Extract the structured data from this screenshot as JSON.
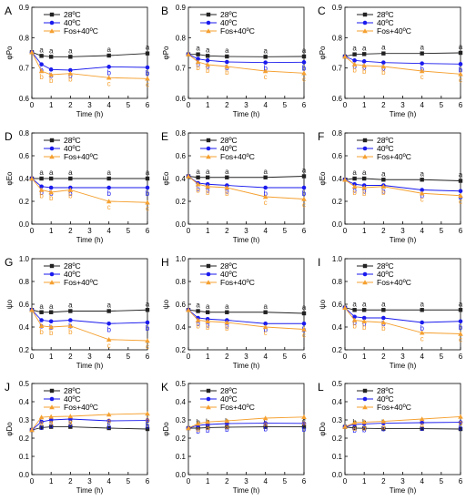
{
  "legend": {
    "labels": [
      "28ºC",
      "40ºC",
      "Fos+40ºC"
    ]
  },
  "colors": {
    "s28": "#222222",
    "s40": "#1a1aee",
    "sfos": "#f5a030",
    "axis": "#000000"
  },
  "chart_data": [
    {
      "panel": "A",
      "type": "line",
      "xlabel": "Time (h)",
      "ylabel": "φPo",
      "x": [
        0,
        0.5,
        1,
        2,
        4,
        6
      ],
      "xlim": [
        0,
        6
      ],
      "xticks": [
        "0",
        "1",
        "2",
        "3",
        "4",
        "5",
        "6"
      ],
      "ylim": [
        0.6,
        0.9
      ],
      "yticks": [
        "0.6",
        "0.7",
        "0.8",
        "0.9"
      ],
      "series": [
        {
          "name": "28ºC",
          "values": [
            0.752,
            0.74,
            0.737,
            0.737,
            0.741,
            0.748
          ],
          "labels": [
            "",
            "a",
            "a",
            "a",
            "a",
            "a"
          ]
        },
        {
          "name": "40ºC",
          "values": [
            0.752,
            0.712,
            0.695,
            0.693,
            0.704,
            0.702
          ],
          "labels": [
            "",
            "b",
            "b",
            "b",
            "b",
            "b"
          ]
        },
        {
          "name": "Fos+40ºC",
          "values": [
            0.752,
            0.69,
            0.678,
            0.682,
            0.668,
            0.665
          ],
          "labels": [
            "",
            "b",
            "b",
            "b",
            "c",
            "c"
          ]
        }
      ]
    },
    {
      "panel": "B",
      "type": "line",
      "xlabel": "Time (h)",
      "ylabel": "φPo",
      "x": [
        0,
        0.5,
        1,
        2,
        4,
        6
      ],
      "xlim": [
        0,
        6
      ],
      "xticks": [
        "0",
        "1",
        "2",
        "3",
        "4",
        "5",
        "6"
      ],
      "ylim": [
        0.6,
        0.9
      ],
      "yticks": [
        "0.6",
        "0.7",
        "0.8",
        "0.9"
      ],
      "series": [
        {
          "name": "28ºC",
          "values": [
            0.745,
            0.745,
            0.74,
            0.738,
            0.737,
            0.738
          ],
          "labels": [
            "",
            "a",
            "a",
            "a",
            "a",
            "a"
          ]
        },
        {
          "name": "40ºC",
          "values": [
            0.745,
            0.73,
            0.725,
            0.72,
            0.718,
            0.719
          ],
          "labels": [
            "",
            "b",
            "b",
            "b",
            "b",
            "b"
          ]
        },
        {
          "name": "Fos+40ºC",
          "values": [
            0.745,
            0.72,
            0.711,
            0.705,
            0.69,
            0.683
          ],
          "labels": [
            "",
            "b",
            "b",
            "b",
            "c",
            "c"
          ]
        }
      ]
    },
    {
      "panel": "C",
      "type": "line",
      "xlabel": "Time (h)",
      "ylabel": "φPo",
      "x": [
        0,
        0.5,
        1,
        2,
        4,
        6
      ],
      "xlim": [
        0,
        6
      ],
      "xticks": [
        "0",
        "1",
        "2",
        "3",
        "4",
        "5",
        "6"
      ],
      "ylim": [
        0.6,
        0.9
      ],
      "yticks": [
        "0.6",
        "0.7",
        "0.8",
        "0.9"
      ],
      "series": [
        {
          "name": "28ºC",
          "values": [
            0.738,
            0.745,
            0.746,
            0.748,
            0.748,
            0.75
          ],
          "labels": [
            "",
            "a",
            "a",
            "a",
            "a",
            "a"
          ]
        },
        {
          "name": "40ºC",
          "values": [
            0.738,
            0.725,
            0.722,
            0.718,
            0.715,
            0.713
          ],
          "labels": [
            "",
            "b",
            "b",
            "b",
            "b",
            "b"
          ]
        },
        {
          "name": "Fos+40ºC",
          "values": [
            0.738,
            0.712,
            0.708,
            0.705,
            0.69,
            0.68
          ],
          "labels": [
            "",
            "b",
            "b",
            "b",
            "c",
            "c"
          ]
        }
      ]
    },
    {
      "panel": "D",
      "type": "line",
      "xlabel": "Time (h)",
      "ylabel": "φEo",
      "x": [
        0,
        0.5,
        1,
        2,
        4,
        6
      ],
      "xlim": [
        0,
        6
      ],
      "xticks": [
        "0",
        "1",
        "2",
        "3",
        "4",
        "5",
        "6"
      ],
      "ylim": [
        0.0,
        0.8
      ],
      "yticks": [
        "0.0",
        "0.2",
        "0.4",
        "0.6",
        "0.8"
      ],
      "series": [
        {
          "name": "28ºC",
          "values": [
            0.4,
            0.4,
            0.4,
            0.4,
            0.4,
            0.4
          ],
          "labels": [
            "",
            "a",
            "a",
            "a",
            "a",
            "a"
          ]
        },
        {
          "name": "40ºC",
          "values": [
            0.4,
            0.33,
            0.32,
            0.32,
            0.32,
            0.32
          ],
          "labels": [
            "",
            "b",
            "b",
            "b",
            "b",
            "b"
          ]
        },
        {
          "name": "Fos+40ºC",
          "values": [
            0.4,
            0.3,
            0.28,
            0.3,
            0.2,
            0.19
          ],
          "labels": [
            "",
            "b",
            "b",
            "b",
            "c",
            "c"
          ]
        }
      ]
    },
    {
      "panel": "E",
      "type": "line",
      "xlabel": "Time (h)",
      "ylabel": "φEo",
      "x": [
        0,
        0.5,
        1,
        2,
        4,
        6
      ],
      "xlim": [
        0,
        6
      ],
      "xticks": [
        "0",
        "1",
        "2",
        "3",
        "4",
        "5",
        "6"
      ],
      "ylim": [
        0.0,
        0.8
      ],
      "yticks": [
        "0.0",
        "0.2",
        "0.4",
        "0.6",
        "0.8"
      ],
      "series": [
        {
          "name": "28ºC",
          "values": [
            0.42,
            0.41,
            0.41,
            0.41,
            0.41,
            0.42
          ],
          "labels": [
            "",
            "a",
            "a",
            "a",
            "a",
            "a"
          ]
        },
        {
          "name": "40ºC",
          "values": [
            0.42,
            0.36,
            0.35,
            0.34,
            0.32,
            0.32
          ],
          "labels": [
            "",
            "b",
            "b",
            "b",
            "b",
            "b"
          ]
        },
        {
          "name": "Fos+40ºC",
          "values": [
            0.42,
            0.35,
            0.33,
            0.32,
            0.24,
            0.22
          ],
          "labels": [
            "",
            "b",
            "b",
            "b",
            "c",
            "c"
          ]
        }
      ]
    },
    {
      "panel": "F",
      "type": "line",
      "xlabel": "Time (h)",
      "ylabel": "φEo",
      "x": [
        0,
        0.5,
        1,
        2,
        4,
        6
      ],
      "xlim": [
        0,
        6
      ],
      "xticks": [
        "0",
        "1",
        "2",
        "3",
        "4",
        "5",
        "6"
      ],
      "ylim": [
        0.0,
        0.8
      ],
      "yticks": [
        "0.0",
        "0.2",
        "0.4",
        "0.6",
        "0.8"
      ],
      "series": [
        {
          "name": "28ºC",
          "values": [
            0.39,
            0.4,
            0.4,
            0.39,
            0.39,
            0.38
          ],
          "labels": [
            "",
            "a",
            "a",
            "a",
            "a",
            "a"
          ]
        },
        {
          "name": "40ºC",
          "values": [
            0.39,
            0.35,
            0.34,
            0.34,
            0.3,
            0.29
          ],
          "labels": [
            "",
            "b",
            "b",
            "b",
            "b",
            "b"
          ]
        },
        {
          "name": "Fos+40ºC",
          "values": [
            0.39,
            0.33,
            0.32,
            0.33,
            0.27,
            0.25
          ],
          "labels": [
            "",
            "b",
            "b",
            "b",
            "c",
            "c"
          ]
        }
      ]
    },
    {
      "panel": "G",
      "type": "line",
      "xlabel": "Time (h)",
      "ylabel": "ψo",
      "x": [
        0,
        0.5,
        1,
        2,
        4,
        6
      ],
      "xlim": [
        0,
        6
      ],
      "xticks": [
        "0",
        "1",
        "2",
        "3",
        "4",
        "5",
        "6"
      ],
      "ylim": [
        0.2,
        1.0
      ],
      "yticks": [
        "0.2",
        "0.4",
        "0.6",
        "0.8",
        "1.0"
      ],
      "series": [
        {
          "name": "28ºC",
          "values": [
            0.55,
            0.53,
            0.53,
            0.54,
            0.54,
            0.55
          ],
          "labels": [
            "",
            "a",
            "a",
            "a",
            "a",
            "a"
          ]
        },
        {
          "name": "40ºC",
          "values": [
            0.55,
            0.46,
            0.45,
            0.46,
            0.43,
            0.44
          ],
          "labels": [
            "",
            "b",
            "b",
            "b",
            "b",
            "b"
          ]
        },
        {
          "name": "Fos+40ºC",
          "values": [
            0.55,
            0.41,
            0.4,
            0.41,
            0.29,
            0.28
          ],
          "labels": [
            "",
            "b",
            "b",
            "b",
            "c",
            "c"
          ]
        }
      ]
    },
    {
      "panel": "H",
      "type": "line",
      "xlabel": "Time (h)",
      "ylabel": "ψo",
      "x": [
        0,
        0.5,
        1,
        2,
        4,
        6
      ],
      "xlim": [
        0,
        6
      ],
      "xticks": [
        "0",
        "1",
        "2",
        "3",
        "4",
        "5",
        "6"
      ],
      "ylim": [
        0.2,
        1.0
      ],
      "yticks": [
        "0.2",
        "0.4",
        "0.6",
        "0.8",
        "1.0"
      ],
      "series": [
        {
          "name": "28ºC",
          "values": [
            0.55,
            0.54,
            0.53,
            0.53,
            0.53,
            0.52
          ],
          "labels": [
            "",
            "a",
            "a",
            "a",
            "a",
            "a"
          ]
        },
        {
          "name": "40ºC",
          "values": [
            0.55,
            0.48,
            0.47,
            0.46,
            0.43,
            0.43
          ],
          "labels": [
            "",
            "b",
            "b",
            "b",
            "b",
            "b"
          ]
        },
        {
          "name": "Fos+40ºC",
          "values": [
            0.55,
            0.46,
            0.45,
            0.44,
            0.4,
            0.38
          ],
          "labels": [
            "",
            "b",
            "b",
            "b",
            "c",
            "c"
          ]
        }
      ]
    },
    {
      "panel": "I",
      "type": "line",
      "xlabel": "Time (h)",
      "ylabel": "ψo",
      "x": [
        0,
        0.5,
        1,
        2,
        4,
        6
      ],
      "xlim": [
        0,
        6
      ],
      "xticks": [
        "0",
        "1",
        "2",
        "3",
        "4",
        "5",
        "6"
      ],
      "ylim": [
        0.2,
        1.0
      ],
      "yticks": [
        "0.2",
        "0.4",
        "0.6",
        "0.8",
        "1.0"
      ],
      "series": [
        {
          "name": "28ºC",
          "values": [
            0.57,
            0.55,
            0.55,
            0.55,
            0.55,
            0.55
          ],
          "labels": [
            "",
            "a",
            "a",
            "a",
            "a",
            "a"
          ]
        },
        {
          "name": "40ºC",
          "values": [
            0.57,
            0.49,
            0.48,
            0.48,
            0.44,
            0.45
          ],
          "labels": [
            "",
            "b",
            "b",
            "b",
            "b",
            "b"
          ]
        },
        {
          "name": "Fos+40ºC",
          "values": [
            0.57,
            0.46,
            0.45,
            0.44,
            0.35,
            0.34
          ],
          "labels": [
            "",
            "b",
            "b",
            "b",
            "c",
            "c"
          ]
        }
      ]
    },
    {
      "panel": "J",
      "type": "line",
      "xlabel": "Time (h)",
      "ylabel": "φDo",
      "x": [
        0,
        0.5,
        1,
        2,
        4,
        6
      ],
      "xlim": [
        0,
        6
      ],
      "xticks": [
        "0",
        "1",
        "2",
        "3",
        "4",
        "5",
        "6"
      ],
      "ylim": [
        0.0,
        0.5
      ],
      "yticks": [
        "0.0",
        "0.1",
        "0.2",
        "0.3",
        "0.4",
        "0.5"
      ],
      "series": [
        {
          "name": "28ºC",
          "values": [
            0.245,
            0.258,
            0.262,
            0.262,
            0.255,
            0.25
          ],
          "labels": [
            "",
            "b",
            "b",
            "b",
            "c",
            "c"
          ]
        },
        {
          "name": "40ºC",
          "values": [
            0.245,
            0.29,
            0.3,
            0.305,
            0.295,
            0.297
          ],
          "labels": [
            "",
            "b",
            "b",
            "b",
            "b",
            "b"
          ]
        },
        {
          "name": "Fos+40ºC",
          "values": [
            0.245,
            0.315,
            0.318,
            0.32,
            0.33,
            0.335
          ],
          "labels": [
            "",
            "a",
            "a",
            "a",
            "a",
            "a"
          ]
        }
      ]
    },
    {
      "panel": "K",
      "type": "line",
      "xlabel": "Time (h)",
      "ylabel": "φDo",
      "x": [
        0,
        0.5,
        1,
        2,
        4,
        6
      ],
      "xlim": [
        0,
        6
      ],
      "xticks": [
        "0",
        "1",
        "2",
        "3",
        "4",
        "5",
        "6"
      ],
      "ylim": [
        0.0,
        0.5
      ],
      "yticks": [
        "0.0",
        "0.1",
        "0.2",
        "0.3",
        "0.4",
        "0.5"
      ],
      "series": [
        {
          "name": "28ºC",
          "values": [
            0.255,
            0.255,
            0.258,
            0.26,
            0.262,
            0.263
          ],
          "labels": [
            "",
            "b",
            "b",
            "b",
            "c",
            "c"
          ]
        },
        {
          "name": "40ºC",
          "values": [
            0.255,
            0.27,
            0.275,
            0.28,
            0.282,
            0.281
          ],
          "labels": [
            "",
            "b",
            "b",
            "b",
            "b",
            "b"
          ]
        },
        {
          "name": "Fos+40ºC",
          "values": [
            0.255,
            0.28,
            0.289,
            0.295,
            0.31,
            0.316
          ],
          "labels": [
            "",
            "a",
            "a",
            "a",
            "a",
            "a"
          ]
        }
      ]
    },
    {
      "panel": "L",
      "type": "line",
      "xlabel": "Time (h)",
      "ylabel": "φDo",
      "x": [
        0,
        0.5,
        1,
        2,
        4,
        6
      ],
      "xlim": [
        0,
        6
      ],
      "xticks": [
        "0",
        "1",
        "2",
        "3",
        "4",
        "5",
        "6"
      ],
      "ylim": [
        0.0,
        0.5
      ],
      "yticks": [
        "0.0",
        "0.1",
        "0.2",
        "0.3",
        "0.4",
        "0.5"
      ],
      "series": [
        {
          "name": "28ºC",
          "values": [
            0.262,
            0.255,
            0.254,
            0.252,
            0.252,
            0.25
          ],
          "labels": [
            "",
            "b",
            "b",
            "b",
            "c",
            "c"
          ]
        },
        {
          "name": "40ºC",
          "values": [
            0.262,
            0.275,
            0.278,
            0.282,
            0.285,
            0.287
          ],
          "labels": [
            "",
            "b",
            "b",
            "b",
            "b",
            "b"
          ]
        },
        {
          "name": "Fos+40ºC",
          "values": [
            0.262,
            0.285,
            0.288,
            0.292,
            0.305,
            0.318
          ],
          "labels": [
            "",
            "a",
            "a",
            "a",
            "a",
            "a"
          ]
        }
      ]
    }
  ]
}
